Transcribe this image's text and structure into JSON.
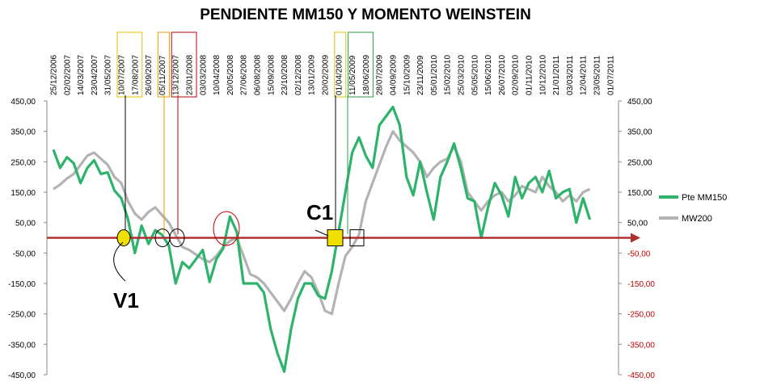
{
  "chart_data": {
    "type": "line",
    "title": "PENDIENTE MM150 Y MOMENTO WEINSTEIN",
    "ylim": [
      -450,
      450
    ],
    "y_ticks": [
      "450,00",
      "350,00",
      "250,00",
      "150,00",
      "50,00",
      "-50,00",
      "-150,00",
      "-250,00",
      "-350,00",
      "-450,00"
    ],
    "y_tick_values": [
      450,
      350,
      250,
      150,
      50,
      -50,
      -150,
      -250,
      -350,
      -450
    ],
    "x_ticks": [
      "25/12/2006",
      "02/02/2007",
      "14/03/2007",
      "23/04/2007",
      "31/05/2007",
      "10/07/2007",
      "17/08/2007",
      "26/09/2007",
      "05/11/2007",
      "13/12/2007",
      "23/01/2008",
      "03/03/2008",
      "10/04/2008",
      "20/05/2008",
      "27/06/2008",
      "06/08/2008",
      "15/09/2008",
      "23/10/2008",
      "02/12/2008",
      "13/01/2009",
      "20/02/2009",
      "01/04/2009",
      "11/05/2009",
      "18/06/2009",
      "28/07/2009",
      "04/09/2009",
      "15/10/2009",
      "23/11/2009",
      "05/01/2010",
      "15/02/2010",
      "25/03/2010",
      "05/05/2010",
      "15/06/2010",
      "26/07/2010",
      "02/09/2010",
      "01/11/2010",
      "10/12/2010",
      "21/01/2011",
      "03/03/2011",
      "12/04/2011",
      "23/05/2011",
      "01/07/2011"
    ],
    "grid": false,
    "legend_position": "right",
    "reference_line": 0,
    "annotations": [
      "V1",
      "C1"
    ],
    "series": [
      {
        "name": "Pte MM150",
        "color": "#2db36b",
        "values": [
          [
            0,
            290
          ],
          [
            0.5,
            230
          ],
          [
            1,
            265
          ],
          [
            1.5,
            245
          ],
          [
            2,
            180
          ],
          [
            2.5,
            230
          ],
          [
            3,
            255
          ],
          [
            3.5,
            210
          ],
          [
            4,
            215
          ],
          [
            4.5,
            155
          ],
          [
            5,
            130
          ],
          [
            5.5,
            60
          ],
          [
            6,
            -50
          ],
          [
            6.5,
            40
          ],
          [
            7,
            -20
          ],
          [
            7.5,
            25
          ],
          [
            8,
            10
          ],
          [
            8.5,
            -25
          ],
          [
            9,
            -150
          ],
          [
            9.5,
            -80
          ],
          [
            10,
            -100
          ],
          [
            10.5,
            -70
          ],
          [
            11,
            -40
          ],
          [
            11.5,
            -145
          ],
          [
            12,
            -70
          ],
          [
            12.5,
            -35
          ],
          [
            13,
            70
          ],
          [
            13.5,
            20
          ],
          [
            14,
            -150
          ],
          [
            14.5,
            -150
          ],
          [
            15,
            -150
          ],
          [
            15.5,
            -180
          ],
          [
            16,
            -300
          ],
          [
            16.5,
            -380
          ],
          [
            17,
            -440
          ],
          [
            17.5,
            -300
          ],
          [
            18,
            -200
          ],
          [
            18.5,
            -150
          ],
          [
            19,
            -150
          ],
          [
            19.5,
            -190
          ],
          [
            20,
            -200
          ],
          [
            20.5,
            -110
          ],
          [
            21,
            20
          ],
          [
            21.5,
            150
          ],
          [
            22,
            280
          ],
          [
            22.5,
            330
          ],
          [
            23,
            270
          ],
          [
            23.5,
            230
          ],
          [
            24,
            370
          ],
          [
            24.5,
            400
          ],
          [
            25,
            430
          ],
          [
            25.5,
            370
          ],
          [
            26,
            200
          ],
          [
            26.5,
            140
          ],
          [
            27,
            250
          ],
          [
            27.5,
            150
          ],
          [
            28,
            60
          ],
          [
            28.5,
            200
          ],
          [
            29,
            250
          ],
          [
            29.5,
            310
          ],
          [
            30,
            230
          ],
          [
            30.5,
            130
          ],
          [
            31,
            120
          ],
          [
            31.5,
            0
          ],
          [
            32,
            100
          ],
          [
            32.5,
            180
          ],
          [
            33,
            140
          ],
          [
            33.5,
            70
          ],
          [
            34,
            200
          ],
          [
            34.5,
            130
          ],
          [
            35,
            180
          ],
          [
            35.5,
            200
          ],
          [
            36,
            150
          ],
          [
            36.5,
            220
          ],
          [
            37,
            130
          ],
          [
            37.5,
            150
          ],
          [
            38,
            160
          ],
          [
            38.5,
            50
          ],
          [
            39,
            130
          ],
          [
            39.5,
            60
          ]
        ]
      },
      {
        "name": "MW200",
        "color": "#b3b3b3",
        "values": [
          [
            0,
            160
          ],
          [
            0.5,
            175
          ],
          [
            1,
            195
          ],
          [
            1.5,
            210
          ],
          [
            2,
            240
          ],
          [
            2.5,
            270
          ],
          [
            3,
            280
          ],
          [
            3.5,
            260
          ],
          [
            4,
            240
          ],
          [
            4.5,
            200
          ],
          [
            5,
            180
          ],
          [
            5.5,
            120
          ],
          [
            6,
            80
          ],
          [
            6.5,
            60
          ],
          [
            7,
            85
          ],
          [
            7.5,
            100
          ],
          [
            8,
            75
          ],
          [
            8.5,
            50
          ],
          [
            9,
            10
          ],
          [
            9.5,
            -30
          ],
          [
            10,
            -40
          ],
          [
            10.5,
            -55
          ],
          [
            11,
            -70
          ],
          [
            11.5,
            -80
          ],
          [
            12,
            -60
          ],
          [
            12.5,
            -30
          ],
          [
            13,
            -10
          ],
          [
            13.5,
            0
          ],
          [
            14,
            -60
          ],
          [
            14.5,
            -120
          ],
          [
            15,
            -130
          ],
          [
            15.5,
            -150
          ],
          [
            16,
            -180
          ],
          [
            16.5,
            -210
          ],
          [
            17,
            -240
          ],
          [
            17.5,
            -200
          ],
          [
            18,
            -150
          ],
          [
            18.5,
            -110
          ],
          [
            19,
            -130
          ],
          [
            19.5,
            -180
          ],
          [
            20,
            -240
          ],
          [
            20.5,
            -250
          ],
          [
            21,
            -150
          ],
          [
            21.5,
            -60
          ],
          [
            22,
            -30
          ],
          [
            22.5,
            10
          ],
          [
            23,
            120
          ],
          [
            23.5,
            180
          ],
          [
            24,
            240
          ],
          [
            24.5,
            300
          ],
          [
            25,
            350
          ],
          [
            25.5,
            320
          ],
          [
            26,
            300
          ],
          [
            26.5,
            280
          ],
          [
            27,
            250
          ],
          [
            27.5,
            200
          ],
          [
            28,
            230
          ],
          [
            28.5,
            250
          ],
          [
            29,
            260
          ],
          [
            29.5,
            300
          ],
          [
            30,
            250
          ],
          [
            30.5,
            150
          ],
          [
            31,
            120
          ],
          [
            31.5,
            90
          ],
          [
            32,
            120
          ],
          [
            32.5,
            140
          ],
          [
            33,
            150
          ],
          [
            33.5,
            120
          ],
          [
            34,
            140
          ],
          [
            34.5,
            170
          ],
          [
            35,
            160
          ],
          [
            35.5,
            150
          ],
          [
            36,
            200
          ],
          [
            36.5,
            170
          ],
          [
            37,
            150
          ],
          [
            37.5,
            120
          ],
          [
            38,
            140
          ],
          [
            38.5,
            120
          ],
          [
            39,
            150
          ],
          [
            39.5,
            160
          ]
        ]
      }
    ]
  }
}
